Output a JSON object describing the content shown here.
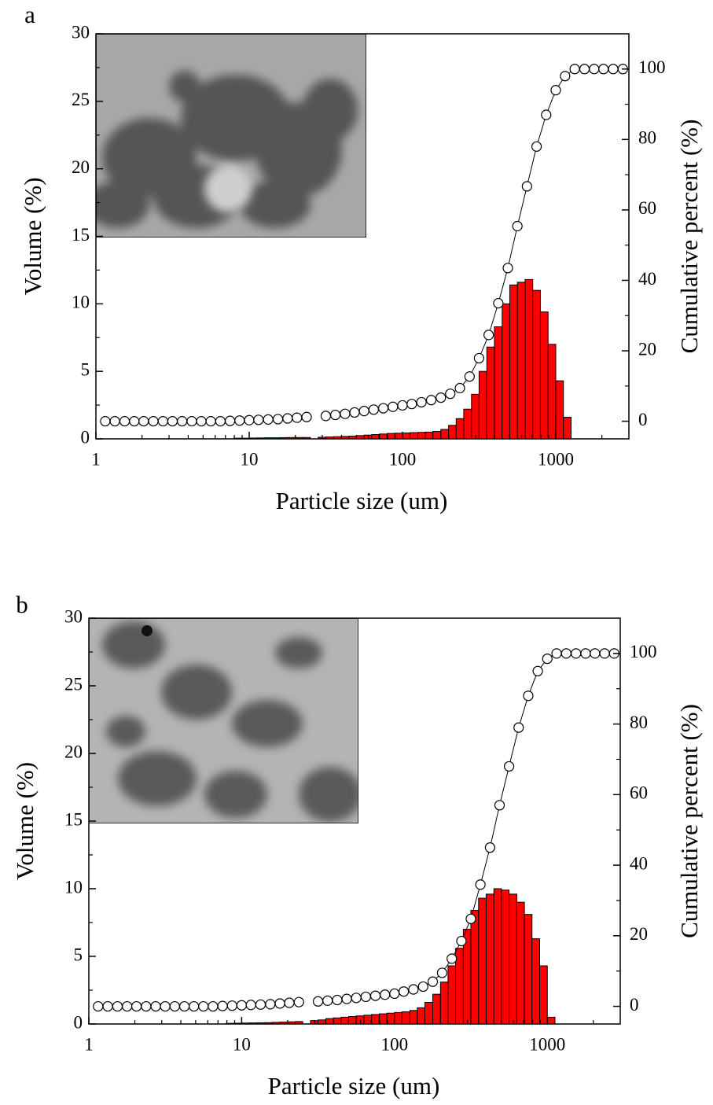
{
  "chart_data": [
    {
      "type": "histogram",
      "panel_label": "a",
      "xlabel": "Particle size (um)",
      "ylabel": "Volume (%)",
      "y2label": "Cumulative percent (%)",
      "xscale": "log",
      "xlim": [
        1,
        3000
      ],
      "xticks": [
        1,
        10,
        100,
        1000
      ],
      "ylim": [
        0,
        30
      ],
      "yticks": [
        0,
        5,
        10,
        15,
        20,
        25,
        30
      ],
      "y2lim": [
        -5,
        110
      ],
      "y2ticks": [
        0,
        20,
        40,
        60,
        80,
        100
      ],
      "bins": [
        7.94,
        8.91,
        10,
        11.2,
        12.6,
        14.1,
        15.8,
        17.8,
        20,
        22.4,
        25.1,
        28.2,
        31.6,
        35.5,
        39.8,
        44.7,
        50.1,
        56.2,
        63.1,
        70.8,
        79.4,
        89.1,
        100,
        112,
        126,
        141,
        158,
        178,
        200,
        224,
        251,
        282,
        316,
        355,
        398,
        447,
        501,
        562,
        631,
        708,
        794,
        891,
        1000,
        1122,
        1259
      ],
      "values": [
        0.05,
        0.05,
        0.06,
        0.07,
        0.08,
        0.08,
        0.09,
        0.1,
        0.1,
        0.1,
        0,
        0.12,
        0.14,
        0.16,
        0.18,
        0.2,
        0.24,
        0.28,
        0.32,
        0.36,
        0.4,
        0.42,
        0.44,
        0.46,
        0.48,
        0.5,
        0.55,
        0.7,
        1.0,
        1.5,
        2.2,
        3.3,
        5.0,
        6.8,
        8.3,
        10.0,
        11.4,
        11.6,
        11.8,
        11.0,
        9.4,
        7.0,
        4.3,
        1.6
      ],
      "color": "#ff0000",
      "edgecolor": "#000000",
      "cumulative": {
        "axis": "y2",
        "color": "#000000",
        "marker_fill": "#ffffff",
        "x": [
          1.15,
          1.33,
          1.54,
          1.78,
          2.05,
          2.37,
          2.74,
          3.16,
          3.65,
          4.22,
          4.87,
          5.62,
          6.49,
          7.5,
          8.66,
          10,
          11.5,
          13.3,
          15.4,
          17.8,
          20.5,
          23.7,
          27.4,
          31.6,
          36.5,
          42.2,
          48.7,
          56.2,
          64.9,
          75,
          86.6,
          100,
          115,
          133,
          154,
          178,
          205,
          237,
          274,
          316,
          365,
          422,
          487,
          562,
          649,
          750,
          866,
          1000,
          1150,
          1330,
          1540,
          1780,
          2050,
          2370,
          2740
        ],
        "values": [
          0,
          0,
          0,
          0,
          0,
          0,
          0,
          0,
          0,
          0,
          0,
          0,
          0,
          0.1,
          0.2,
          0.3,
          0.4,
          0.5,
          0.6,
          0.8,
          1.0,
          1.2,
          null,
          1.5,
          1.8,
          2.1,
          2.5,
          2.9,
          3.3,
          3.7,
          4.1,
          4.5,
          4.9,
          5.4,
          6.0,
          6.7,
          7.8,
          9.4,
          12.7,
          17.9,
          24.5,
          33.5,
          43.5,
          55.4,
          66.7,
          78.0,
          87.0,
          94.0,
          98.0,
          100,
          100,
          100,
          100,
          100,
          100
        ]
      }
    },
    {
      "type": "histogram",
      "panel_label": "b",
      "xlabel": "Particle size (um)",
      "ylabel": "Volume (%)",
      "y2label": "Cumulative percent (%)",
      "xscale": "log",
      "xlim": [
        1,
        3000
      ],
      "xticks": [
        1,
        10,
        100,
        1000
      ],
      "ylim": [
        0,
        30
      ],
      "yticks": [
        0,
        5,
        10,
        15,
        20,
        25,
        30
      ],
      "y2lim": [
        -5,
        110
      ],
      "y2ticks": [
        0,
        20,
        40,
        60,
        80,
        100
      ],
      "bins": [
        7.94,
        8.91,
        10,
        11.2,
        12.6,
        14.1,
        15.8,
        17.8,
        20,
        22.4,
        25.1,
        28.2,
        31.6,
        35.5,
        39.8,
        44.7,
        50.1,
        56.2,
        63.1,
        70.8,
        79.4,
        89.1,
        100,
        112,
        126,
        141,
        158,
        178,
        200,
        224,
        251,
        282,
        316,
        355,
        398,
        447,
        501,
        562,
        631,
        708,
        794,
        891,
        1000,
        1122,
        1259
      ],
      "values": [
        0.05,
        0.06,
        0.07,
        0.08,
        0.09,
        0.1,
        0.12,
        0.14,
        0.16,
        0.18,
        0,
        0.25,
        0.3,
        0.4,
        0.45,
        0.5,
        0.55,
        0.6,
        0.65,
        0.7,
        0.75,
        0.8,
        0.85,
        0.9,
        1.0,
        1.2,
        1.6,
        2.2,
        3.1,
        4.3,
        5.6,
        7.0,
        8.4,
        9.3,
        9.6,
        10.0,
        9.9,
        9.6,
        9.0,
        8.1,
        6.3,
        4.3,
        0.5,
        0
      ],
      "color": "#ff0000",
      "edgecolor": "#000000",
      "cumulative": {
        "axis": "y2",
        "color": "#000000",
        "marker_fill": "#ffffff",
        "x": [
          1.15,
          1.33,
          1.54,
          1.78,
          2.05,
          2.37,
          2.74,
          3.16,
          3.65,
          4.22,
          4.87,
          5.62,
          6.49,
          7.5,
          8.66,
          10,
          11.5,
          13.3,
          15.4,
          17.8,
          20.5,
          23.7,
          27.4,
          31.6,
          36.5,
          42.2,
          48.7,
          56.2,
          64.9,
          75,
          86.6,
          100,
          115,
          133,
          154,
          178,
          205,
          237,
          274,
          316,
          365,
          422,
          487,
          562,
          649,
          750,
          866,
          1000,
          1150,
          1330,
          1540,
          1780,
          2050,
          2370,
          2740
        ],
        "values": [
          0,
          0,
          0,
          0,
          0,
          0,
          0,
          0,
          0,
          0,
          0,
          0,
          0,
          0.1,
          0.2,
          0.3,
          0.4,
          0.5,
          0.6,
          0.8,
          1.0,
          1.2,
          null,
          1.4,
          1.6,
          1.8,
          2.1,
          2.4,
          2.7,
          3.0,
          3.3,
          3.6,
          4.2,
          4.8,
          5.6,
          7.0,
          9.5,
          13.5,
          18.5,
          24.8,
          34.5,
          45.0,
          57.0,
          68.0,
          79.0,
          88.0,
          95.0,
          98.5,
          100,
          100,
          100,
          100,
          100,
          100,
          100
        ]
      }
    }
  ]
}
